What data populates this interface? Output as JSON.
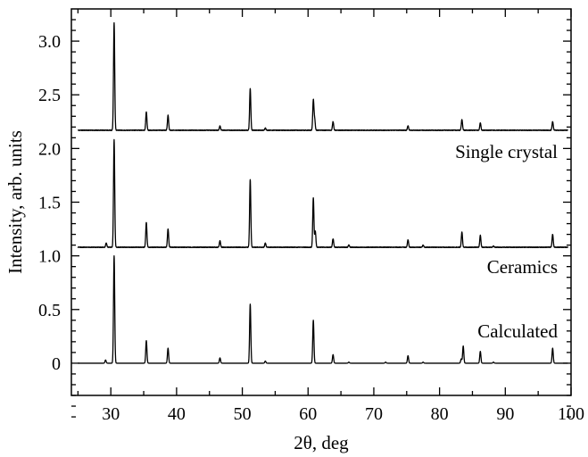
{
  "chart_data": {
    "type": "line",
    "title": "",
    "xlabel": "2θ, deg",
    "ylabel": "Intensity, arb. units",
    "xlim": [
      24,
      100
    ],
    "ylim": [
      -0.3,
      3.3
    ],
    "xticks": [
      30,
      40,
      50,
      60,
      70,
      80,
      90,
      100
    ],
    "yticks": [
      0,
      0.5,
      1.0,
      1.5,
      2.0,
      2.5,
      3.0
    ],
    "ytick_labels": [
      "0",
      "0.5",
      "1.0",
      "1.5",
      "2.0",
      "2.5",
      "3.0"
    ],
    "grid": false,
    "series": [
      {
        "name": "Calculated",
        "baseline": 0.0,
        "peaks": [
          [
            29.2,
            0.03
          ],
          [
            30.5,
            1.0
          ],
          [
            35.4,
            0.21
          ],
          [
            38.7,
            0.14
          ],
          [
            46.6,
            0.05
          ],
          [
            51.2,
            0.55
          ],
          [
            53.5,
            0.02
          ],
          [
            60.8,
            0.4
          ],
          [
            63.8,
            0.08
          ],
          [
            66.2,
            0.01
          ],
          [
            71.8,
            0.01
          ],
          [
            75.2,
            0.07
          ],
          [
            77.5,
            0.01
          ],
          [
            83.3,
            0.04
          ],
          [
            83.6,
            0.16
          ],
          [
            86.2,
            0.11
          ],
          [
            88.2,
            0.01
          ],
          [
            97.2,
            0.14
          ]
        ]
      },
      {
        "name": "Ceramics",
        "baseline": 1.08,
        "peaks": [
          [
            29.3,
            0.04
          ],
          [
            30.5,
            1.0
          ],
          [
            35.4,
            0.23
          ],
          [
            38.7,
            0.17
          ],
          [
            46.6,
            0.06
          ],
          [
            51.2,
            0.63
          ],
          [
            53.5,
            0.04
          ],
          [
            60.8,
            0.46
          ],
          [
            61.1,
            0.15
          ],
          [
            63.8,
            0.08
          ],
          [
            66.2,
            0.02
          ],
          [
            75.2,
            0.07
          ],
          [
            77.5,
            0.02
          ],
          [
            83.4,
            0.14
          ],
          [
            86.2,
            0.11
          ],
          [
            88.2,
            0.01
          ],
          [
            97.2,
            0.12
          ]
        ]
      },
      {
        "name": "Single crystal",
        "baseline": 2.17,
        "peaks": [
          [
            30.5,
            1.0
          ],
          [
            35.4,
            0.17
          ],
          [
            38.7,
            0.14
          ],
          [
            46.6,
            0.04
          ],
          [
            51.2,
            0.39
          ],
          [
            53.5,
            0.02
          ],
          [
            60.8,
            0.28
          ],
          [
            61.0,
            0.1
          ],
          [
            63.8,
            0.08
          ],
          [
            75.2,
            0.04
          ],
          [
            83.4,
            0.1
          ],
          [
            86.2,
            0.07
          ],
          [
            97.2,
            0.08
          ]
        ]
      }
    ]
  }
}
